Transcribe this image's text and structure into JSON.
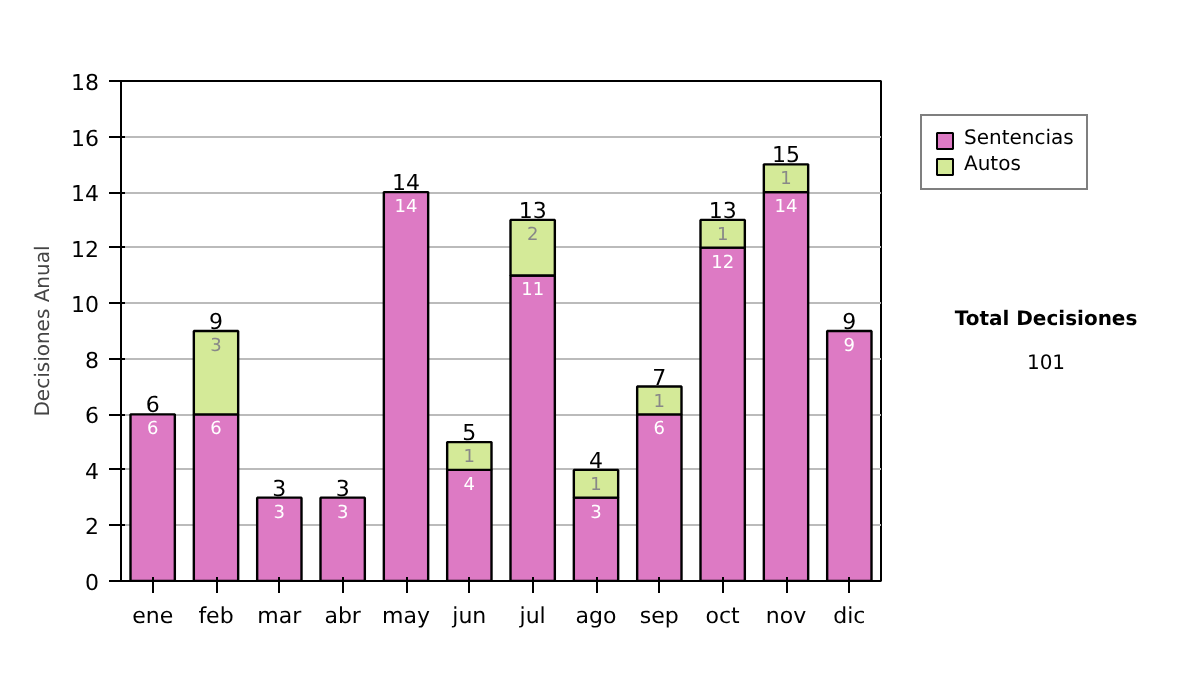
{
  "chart_data": {
    "type": "bar",
    "stacked": true,
    "ylabel": "Decisiones Anual",
    "categories": [
      "ene",
      "feb",
      "mar",
      "abr",
      "may",
      "jun",
      "jul",
      "ago",
      "sep",
      "oct",
      "nov",
      "dic"
    ],
    "series": [
      {
        "name": "Sentencias",
        "color": "#dd7ac4",
        "values": [
          6,
          6,
          3,
          3,
          14,
          4,
          11,
          3,
          6,
          12,
          14,
          9
        ]
      },
      {
        "name": "Autos",
        "color": "#d4ea98",
        "values": [
          null,
          3,
          null,
          null,
          null,
          1,
          2,
          1,
          1,
          1,
          1,
          null
        ]
      }
    ],
    "ylim": [
      0,
      18
    ],
    "yticks": [
      0,
      2,
      4,
      6,
      8,
      10,
      12,
      14,
      16,
      18
    ],
    "grid": "y",
    "legend": "right",
    "data_labels": true,
    "totals": [
      "6",
      "9",
      "3",
      "3",
      "14",
      "5",
      "13",
      "4",
      "7",
      "13",
      "15",
      "9"
    ],
    "annotations": [
      "Total Decisiones",
      "101"
    ]
  }
}
